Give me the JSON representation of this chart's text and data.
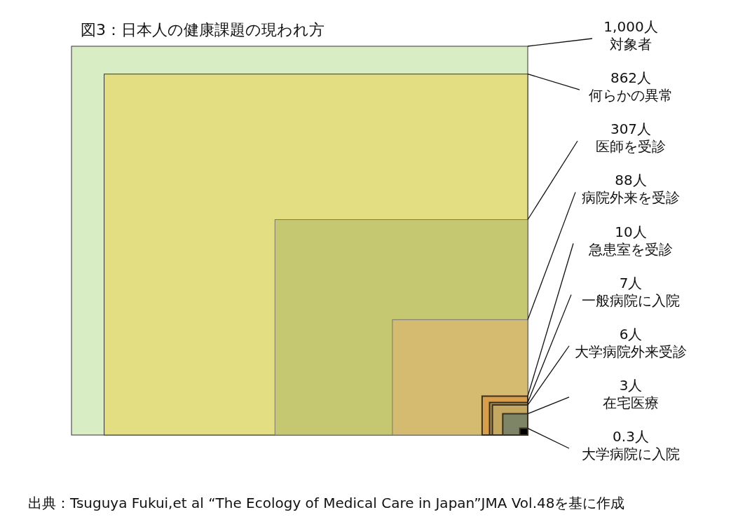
{
  "chart_data": {
    "type": "other",
    "title": "図3：日本人の健康課題の現われ方",
    "categories": [
      "対象者",
      "何らかの異常",
      "医師を受診",
      "病院外来を受診",
      "急患室を受診",
      "一般病院に入院",
      "大学病院外来受診",
      "在宅医療",
      "大学病院に入院"
    ],
    "values": [
      1000,
      862,
      307,
      88,
      10,
      7,
      6,
      3,
      0.3
    ],
    "value_labels": [
      "1,000人",
      "862人",
      "307人",
      "88人",
      "10人",
      "7人",
      "6人",
      "3人",
      "0.3人"
    ],
    "colors": [
      "#d9edc4",
      "#e4de82",
      "#c5c870",
      "#d4bb70",
      "#d99e4c",
      "#a89058",
      "#c4a760",
      "#7e8466",
      "#000000"
    ],
    "annotations": [
      "出典：Tsuguya Fukui,et al “The Ecology of Medical Care in Japan”JMA Vol.48を基に作成"
    ]
  }
}
